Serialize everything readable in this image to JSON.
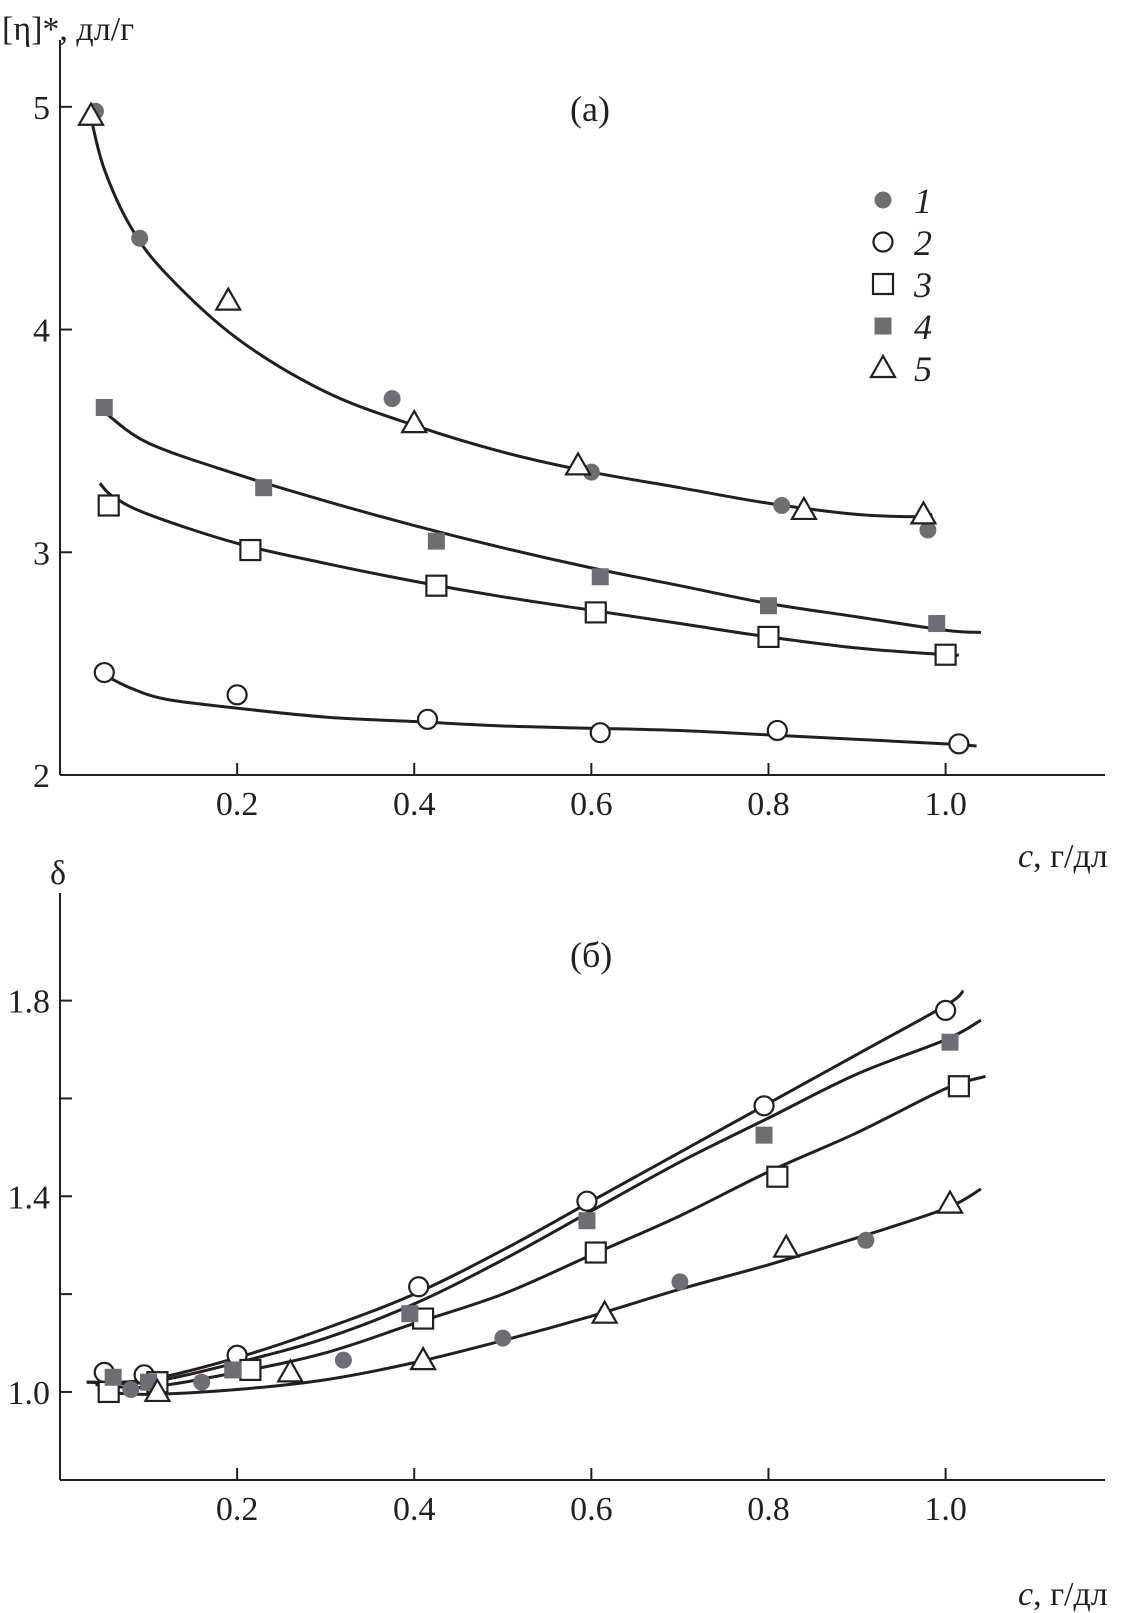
{
  "chart_data": [
    {
      "type": "scatter",
      "panel_label": "(а)",
      "ylabel": "[η]*, дл/г",
      "xlabel_italic": "c",
      "xlabel_rest": ", г/дл",
      "xlim": [
        0.0,
        1.18
      ],
      "ylim": [
        2.0,
        5.3
      ],
      "x_ticks": [
        "0.2",
        "0.4",
        "0.6",
        "0.8",
        "1.0"
      ],
      "x_tick_values": [
        0.2,
        0.4,
        0.6,
        0.8,
        1.0
      ],
      "y_ticks": [
        "2",
        "3",
        "4",
        "5"
      ],
      "y_tick_values": [
        2,
        3,
        4,
        5
      ],
      "series": [
        {
          "name": "1",
          "marker": "filled-circle",
          "x": [
            0.04,
            0.09,
            0.375,
            0.6,
            0.815,
            0.98
          ],
          "y": [
            4.98,
            4.41,
            3.69,
            3.36,
            3.21,
            3.1
          ]
        },
        {
          "name": "2",
          "marker": "open-circle",
          "x": [
            0.05,
            0.2,
            0.415,
            0.61,
            0.81,
            1.015
          ],
          "y": [
            2.46,
            2.36,
            2.25,
            2.19,
            2.2,
            2.14
          ]
        },
        {
          "name": "3",
          "marker": "open-square",
          "x": [
            0.055,
            0.215,
            0.425,
            0.605,
            0.8,
            1.0
          ],
          "y": [
            3.21,
            3.01,
            2.85,
            2.73,
            2.62,
            2.54
          ]
        },
        {
          "name": "4",
          "marker": "filled-square",
          "x": [
            0.05,
            0.23,
            0.425,
            0.61,
            0.8,
            0.99
          ],
          "y": [
            3.65,
            3.29,
            3.05,
            2.89,
            2.76,
            2.68
          ]
        },
        {
          "name": "5",
          "marker": "open-triangle",
          "x": [
            0.035,
            0.19,
            0.4,
            0.585,
            0.84,
            0.975
          ],
          "y": [
            4.96,
            4.13,
            3.58,
            3.39,
            3.19,
            3.17
          ]
        }
      ],
      "curves": [
        {
          "x": [
            0.035,
            0.05,
            0.08,
            0.12,
            0.2,
            0.3,
            0.4,
            0.5,
            0.6,
            0.7,
            0.8,
            0.9,
            0.97,
            0.985
          ],
          "y": [
            4.95,
            4.72,
            4.46,
            4.25,
            3.96,
            3.72,
            3.57,
            3.45,
            3.36,
            3.29,
            3.22,
            3.17,
            3.16,
            3.17
          ]
        },
        {
          "x": [
            0.05,
            0.1,
            0.2,
            0.3,
            0.4,
            0.5,
            0.6,
            0.7,
            0.8,
            0.9,
            1.0,
            1.04
          ],
          "y": [
            3.63,
            3.49,
            3.35,
            3.23,
            3.12,
            3.02,
            2.93,
            2.85,
            2.77,
            2.71,
            2.65,
            2.64
          ]
        },
        {
          "x": [
            0.045,
            0.06,
            0.1,
            0.2,
            0.3,
            0.4,
            0.5,
            0.6,
            0.7,
            0.8,
            0.9,
            1.0,
            1.015
          ],
          "y": [
            3.31,
            3.25,
            3.17,
            3.04,
            2.95,
            2.87,
            2.8,
            2.74,
            2.68,
            2.62,
            2.57,
            2.54,
            2.54
          ]
        },
        {
          "x": [
            0.05,
            0.08,
            0.12,
            0.2,
            0.3,
            0.4,
            0.5,
            0.6,
            0.7,
            0.8,
            0.9,
            1.0,
            1.035
          ],
          "y": [
            2.45,
            2.39,
            2.34,
            2.3,
            2.26,
            2.24,
            2.22,
            2.21,
            2.2,
            2.18,
            2.16,
            2.14,
            2.13
          ]
        }
      ],
      "legend_placement": "top-right",
      "grid": false
    },
    {
      "type": "scatter",
      "panel_label": "(б)",
      "ylabel": "δ",
      "xlabel_italic": "c",
      "xlabel_rest": ", г/дл",
      "xlim": [
        0.0,
        1.18
      ],
      "ylim": [
        0.82,
        2.02
      ],
      "x_ticks": [
        "0.2",
        "0.4",
        "0.6",
        "0.8",
        "1.0"
      ],
      "x_tick_values": [
        0.2,
        0.4,
        0.6,
        0.8,
        1.0
      ],
      "y_ticks": [
        "1.0",
        "1.4",
        "1.8"
      ],
      "y_tick_values": [
        1.0,
        1.4,
        1.8
      ],
      "y_minor_tick_values": [
        1.2,
        1.6
      ],
      "series": [
        {
          "name": "1",
          "marker": "filled-circle",
          "x": [
            0.08,
            0.16,
            0.32,
            0.5,
            0.7,
            0.91
          ],
          "y": [
            1.005,
            1.02,
            1.065,
            1.11,
            1.225,
            1.31
          ]
        },
        {
          "name": "2",
          "marker": "open-circle",
          "x": [
            0.05,
            0.095,
            0.2,
            0.405,
            0.595,
            0.795,
            1.0
          ],
          "y": [
            1.04,
            1.035,
            1.075,
            1.215,
            1.39,
            1.585,
            1.78
          ]
        },
        {
          "name": "3",
          "marker": "open-square",
          "x": [
            0.055,
            0.11,
            0.215,
            0.41,
            0.605,
            0.81,
            1.015
          ],
          "y": [
            1.0,
            1.02,
            1.045,
            1.15,
            1.285,
            1.44,
            1.625
          ]
        },
        {
          "name": "4",
          "marker": "filled-square",
          "x": [
            0.06,
            0.1,
            0.195,
            0.395,
            0.595,
            0.795,
            1.005
          ],
          "y": [
            1.03,
            1.02,
            1.045,
            1.16,
            1.35,
            1.525,
            1.715
          ]
        },
        {
          "name": "5",
          "marker": "open-triangle",
          "x": [
            0.11,
            0.26,
            0.41,
            0.615,
            0.82,
            1.005
          ],
          "y": [
            1.0,
            1.04,
            1.065,
            1.16,
            1.295,
            1.385
          ]
        }
      ],
      "curves": [
        {
          "x": [
            0.03,
            0.1,
            0.2,
            0.3,
            0.4,
            0.5,
            0.6,
            0.7,
            0.8,
            0.9,
            1.0,
            1.02
          ],
          "y": [
            1.02,
            1.025,
            1.07,
            1.13,
            1.2,
            1.29,
            1.39,
            1.49,
            1.59,
            1.69,
            1.79,
            1.82
          ]
        },
        {
          "x": [
            0.03,
            0.1,
            0.2,
            0.3,
            0.4,
            0.5,
            0.6,
            0.7,
            0.8,
            0.9,
            1.0,
            1.04
          ],
          "y": [
            1.02,
            1.02,
            1.06,
            1.11,
            1.18,
            1.27,
            1.37,
            1.47,
            1.56,
            1.65,
            1.72,
            1.76
          ]
        },
        {
          "x": [
            0.04,
            0.1,
            0.2,
            0.3,
            0.4,
            0.5,
            0.6,
            0.7,
            0.8,
            0.9,
            1.0,
            1.045
          ],
          "y": [
            1.015,
            1.01,
            1.04,
            1.08,
            1.14,
            1.2,
            1.28,
            1.36,
            1.45,
            1.53,
            1.62,
            1.645
          ]
        },
        {
          "x": [
            0.05,
            0.1,
            0.2,
            0.3,
            0.4,
            0.5,
            0.6,
            0.7,
            0.8,
            0.9,
            1.0,
            1.04
          ],
          "y": [
            1.0,
            0.995,
            1.005,
            1.025,
            1.06,
            1.105,
            1.155,
            1.21,
            1.26,
            1.315,
            1.375,
            1.415
          ]
        }
      ],
      "grid": false
    }
  ]
}
